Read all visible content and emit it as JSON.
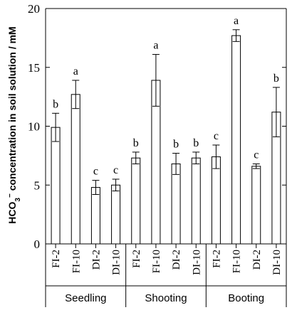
{
  "chart_data": {
    "type": "bar",
    "title": "",
    "xlabel": "",
    "ylabel_prefix": "HCO",
    "ylabel_sub": "3",
    "ylabel_sup": "−",
    "ylabel_rest": " concentration in soil solution / mM",
    "ylim": [
      0,
      20
    ],
    "yticks": [
      "0",
      "5",
      "10",
      "15",
      "20"
    ],
    "grid": false,
    "groups": [
      {
        "name": "Seedling",
        "bars": [
          {
            "label": "FI-2",
            "value": 9.9,
            "err": 1.2,
            "letter": "b"
          },
          {
            "label": "FI-10",
            "value": 12.7,
            "err": 1.2,
            "letter": "a"
          },
          {
            "label": "DI-2",
            "value": 4.8,
            "err": 0.6,
            "letter": "c"
          },
          {
            "label": "DI-10",
            "value": 5.0,
            "err": 0.5,
            "letter": "c"
          }
        ]
      },
      {
        "name": "Shooting",
        "bars": [
          {
            "label": "FI-2",
            "value": 7.3,
            "err": 0.5,
            "letter": "b"
          },
          {
            "label": "FI-10",
            "value": 13.9,
            "err": 2.2,
            "letter": "a"
          },
          {
            "label": "DI-2",
            "value": 6.8,
            "err": 0.9,
            "letter": "b"
          },
          {
            "label": "DI-10",
            "value": 7.3,
            "err": 0.5,
            "letter": "b"
          }
        ]
      },
      {
        "name": "Booting",
        "bars": [
          {
            "label": "FI-2",
            "value": 7.4,
            "err": 1.0,
            "letter": "c"
          },
          {
            "label": "FI-10",
            "value": 17.7,
            "err": 0.5,
            "letter": "a"
          },
          {
            "label": "DI-2",
            "value": 6.6,
            "err": 0.2,
            "letter": "c"
          },
          {
            "label": "DI-10",
            "value": 11.2,
            "err": 2.1,
            "letter": "b"
          }
        ]
      }
    ]
  }
}
